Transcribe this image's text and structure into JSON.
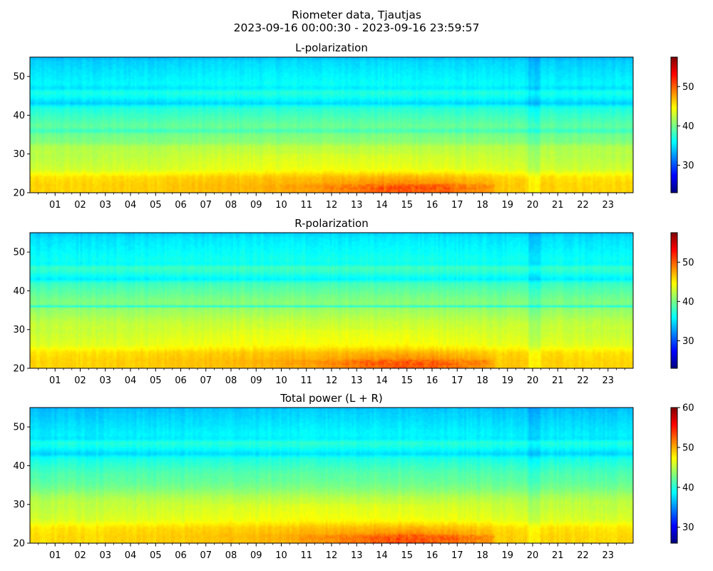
{
  "figure": {
    "title_line1": "Riometer data, Tjautjas",
    "title_line2": "2023-09-16 00:00:30 - 2023-09-16 23:59:57"
  },
  "colormap": {
    "name": "jet",
    "stops": [
      "#00007f",
      "#0000ff",
      "#007fff",
      "#00ffff",
      "#7fff7f",
      "#ffff00",
      "#ff7f00",
      "#ff0000",
      "#7f0000"
    ]
  },
  "chart_data": [
    {
      "type": "heatmap",
      "title": "L-polarization",
      "xlabel": "",
      "ylabel": "",
      "xlim": [
        0,
        24
      ],
      "ylim": [
        20,
        55
      ],
      "xticks": [
        "01",
        "02",
        "03",
        "04",
        "05",
        "06",
        "07",
        "08",
        "09",
        "10",
        "11",
        "12",
        "13",
        "14",
        "15",
        "16",
        "17",
        "18",
        "19",
        "20",
        "21",
        "22",
        "23"
      ],
      "yticks": [
        20,
        30,
        40,
        50
      ],
      "color_range": [
        23,
        57.5
      ],
      "colorbar_ticks": [
        30,
        40,
        50
      ],
      "intensity_profile": {
        "frequency": [
          20,
          22,
          24,
          26,
          28,
          30,
          32,
          33,
          35,
          36,
          37,
          38,
          40,
          42,
          43,
          44,
          45,
          46,
          47,
          48,
          50,
          52,
          54,
          55
        ],
        "value": [
          46.5,
          46.5,
          46.0,
          43.5,
          43.0,
          42.5,
          42.0,
          40.5,
          40.0,
          38.0,
          39.5,
          39.0,
          38.0,
          37.0,
          34.5,
          35.5,
          36.5,
          37.0,
          35.0,
          36.0,
          35.5,
          35.0,
          34.5,
          33.5
        ]
      },
      "enhancement": [
        {
          "hour_start": 6.8,
          "hour_end": 18.5,
          "freq_max": 27,
          "peak_hour": 15.2,
          "peak_value": 51
        }
      ]
    },
    {
      "type": "heatmap",
      "title": "R-polarization",
      "xlabel": "",
      "ylabel": "",
      "xlim": [
        0,
        24
      ],
      "ylim": [
        20,
        55
      ],
      "xticks": [
        "01",
        "02",
        "03",
        "04",
        "05",
        "06",
        "07",
        "08",
        "09",
        "10",
        "11",
        "12",
        "13",
        "14",
        "15",
        "16",
        "17",
        "18",
        "19",
        "20",
        "21",
        "22",
        "23"
      ],
      "yticks": [
        20,
        30,
        40,
        50
      ],
      "color_range": [
        23,
        57.5
      ],
      "colorbar_ticks": [
        30,
        40,
        50
      ],
      "intensity_profile": {
        "frequency": [
          20,
          22,
          24,
          26,
          28,
          30,
          32,
          34,
          35.5,
          36,
          36.5,
          38,
          40,
          42,
          43,
          44,
          45,
          46,
          47,
          48,
          50,
          52,
          54,
          55
        ],
        "value": [
          46.5,
          46.5,
          46.0,
          44.0,
          43.5,
          43.0,
          42.5,
          41.5,
          41.0,
          37.0,
          40.5,
          40.0,
          39.0,
          38.0,
          35.5,
          36.5,
          37.5,
          38.0,
          36.0,
          36.5,
          36.0,
          35.5,
          35.0,
          34.0
        ]
      },
      "enhancement": [
        {
          "hour_start": 6.8,
          "hour_end": 18.5,
          "freq_max": 27,
          "peak_hour": 15.2,
          "peak_value": 51
        }
      ]
    },
    {
      "type": "heatmap",
      "title": "Total power (L + R)",
      "xlabel": "",
      "ylabel": "",
      "xlim": [
        0,
        24
      ],
      "ylim": [
        20,
        55
      ],
      "xticks": [
        "01",
        "02",
        "03",
        "04",
        "05",
        "06",
        "07",
        "08",
        "09",
        "10",
        "11",
        "12",
        "13",
        "14",
        "15",
        "16",
        "17",
        "18",
        "19",
        "20",
        "21",
        "22",
        "23"
      ],
      "yticks": [
        20,
        30,
        40,
        50
      ],
      "color_range": [
        26,
        60
      ],
      "colorbar_ticks": [
        30,
        40,
        50,
        60
      ],
      "intensity_profile": {
        "frequency": [
          20,
          22,
          24,
          26,
          28,
          30,
          32,
          34,
          36,
          38,
          40,
          42,
          43,
          44,
          45,
          46,
          47,
          48,
          50,
          52,
          54,
          55
        ],
        "value": [
          49.0,
          49.0,
          48.5,
          46.5,
          46.0,
          45.5,
          44.5,
          43.0,
          42.0,
          41.5,
          40.5,
          39.5,
          37.5,
          38.5,
          39.5,
          40.0,
          38.0,
          38.5,
          38.0,
          37.5,
          37.0,
          36.5
        ]
      },
      "enhancement": [
        {
          "hour_start": 6.8,
          "hour_end": 18.5,
          "freq_max": 27,
          "peak_hour": 15.2,
          "peak_value": 54
        }
      ]
    }
  ]
}
